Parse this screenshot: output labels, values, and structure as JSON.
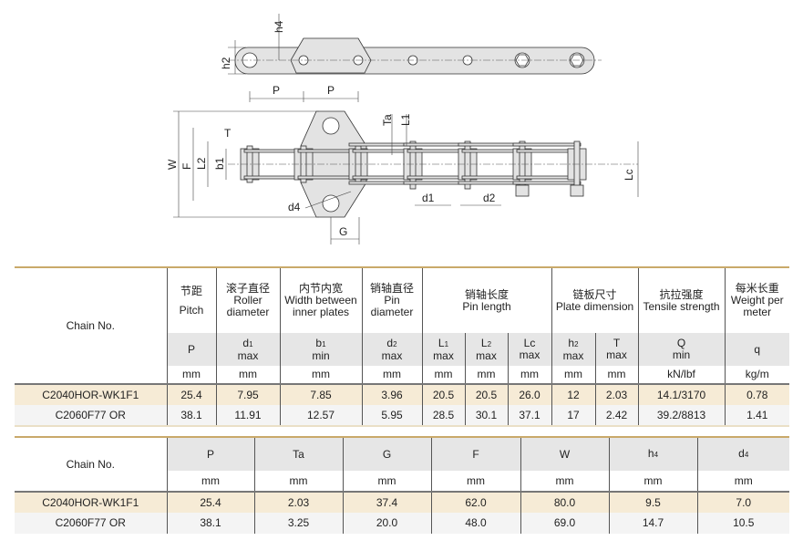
{
  "diagram": {
    "labels": {
      "h4": "h4",
      "h2": "h2",
      "P1": "P",
      "P2": "P",
      "W": "W",
      "F": "F",
      "L2": "L2",
      "b1": "b1",
      "T": "T",
      "Ta": "Ta",
      "L1": "L1",
      "d1": "d1",
      "d2": "d2",
      "Lc": "Lc",
      "d4": "d4",
      "G": "G"
    }
  },
  "table1": {
    "chain_no_label": "Chain No.",
    "columns": [
      {
        "cn": "节距",
        "en": "Pitch",
        "sym": "P",
        "sub": "",
        "q": "",
        "unit": "mm"
      },
      {
        "cn": "滚子直径",
        "en": "Roller diameter",
        "sym": "d",
        "sub": "1",
        "q": "max",
        "unit": "mm"
      },
      {
        "cn": "内节内宽",
        "en": "Width between inner plates",
        "sym": "b",
        "sub": "1",
        "q": "min",
        "unit": "mm"
      },
      {
        "cn": "销轴直径",
        "en": "Pin diameter",
        "sym": "d",
        "sub": "2",
        "q": "max",
        "unit": "mm"
      },
      {
        "cn": "销轴长度",
        "en": "Pin length"
      },
      {
        "cn": "链板尺寸",
        "en": "Plate dimension"
      },
      {
        "cn": "抗拉强度",
        "en": "Tensile strength",
        "sym": "Q",
        "sub": "",
        "q": "min",
        "unit": "kN/lbf"
      },
      {
        "cn": "每米长重",
        "en": "Weight per meter",
        "sym": "q",
        "sub": "",
        "q": "",
        "unit": "kg/m"
      }
    ],
    "pin_sub": [
      {
        "sym": "L",
        "sub": "1",
        "q": "max",
        "unit": "mm"
      },
      {
        "sym": "L",
        "sub": "2",
        "q": "max",
        "unit": "mm"
      },
      {
        "sym": "Lc",
        "sub": "",
        "q": "max",
        "unit": "mm"
      }
    ],
    "plate_sub": [
      {
        "sym": "h",
        "sub": "2",
        "q": "max",
        "unit": "mm"
      },
      {
        "sym": "T",
        "sub": "",
        "q": "max",
        "unit": "mm"
      }
    ],
    "rows": [
      [
        "C2040HOR-WK1F1",
        "25.4",
        "7.95",
        "7.85",
        "3.96",
        "20.5",
        "20.5",
        "26.0",
        "12",
        "2.03",
        "14.1/3170",
        "0.78"
      ],
      [
        "C2060F77 OR",
        "38.1",
        "11.91",
        "12.57",
        "5.95",
        "28.5",
        "30.1",
        "37.1",
        "17",
        "2.42",
        "39.2/8813",
        "1.41"
      ]
    ]
  },
  "table2": {
    "chain_no_label": "Chain No.",
    "headers": [
      {
        "sym": "P",
        "sub": ""
      },
      {
        "sym": "Ta",
        "sub": ""
      },
      {
        "sym": "G",
        "sub": ""
      },
      {
        "sym": "F",
        "sub": ""
      },
      {
        "sym": "W",
        "sub": ""
      },
      {
        "sym": "h",
        "sub": "4"
      },
      {
        "sym": "d",
        "sub": "4"
      }
    ],
    "units": [
      "mm",
      "mm",
      "mm",
      "mm",
      "mm",
      "mm",
      "mm"
    ],
    "rows": [
      [
        "C2040HOR-WK1F1",
        "25.4",
        "2.03",
        "37.4",
        "62.0",
        "80.0",
        "9.5",
        "7.0"
      ],
      [
        "C2060F77 OR",
        "38.1",
        "3.25",
        "20.0",
        "48.0",
        "69.0",
        "14.7",
        "10.5"
      ]
    ]
  },
  "colors": {
    "accent": "#c9a96a",
    "highlight_row": "#f6ebd6",
    "header_gray": "#e6e6e6",
    "part_fill": "#e3e3e3"
  }
}
